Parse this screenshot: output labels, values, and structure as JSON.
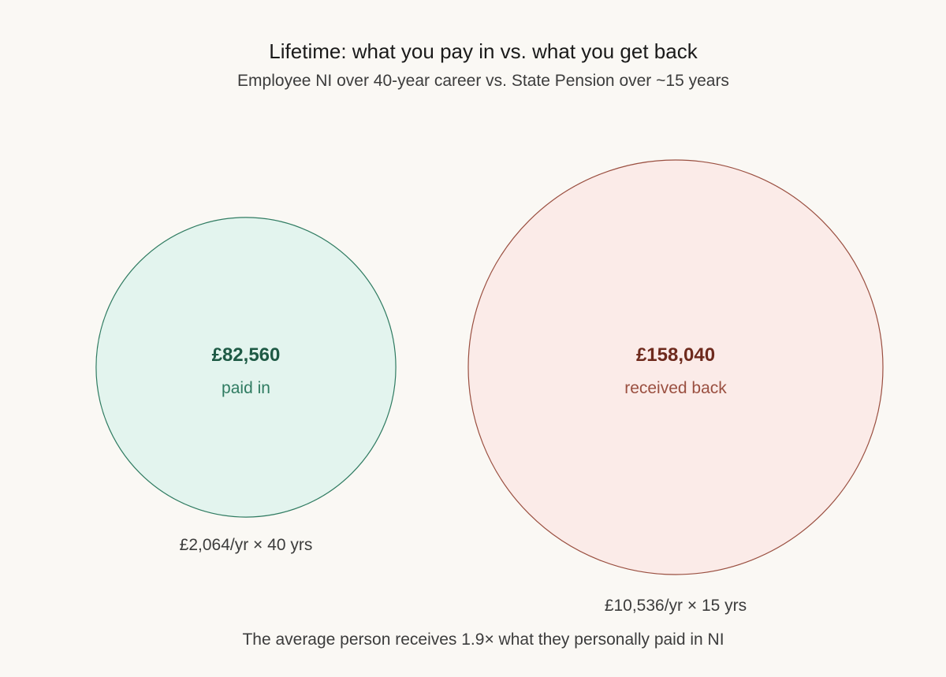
{
  "chart_data": {
    "type": "bubble",
    "title": "Lifetime: what you pay in vs. what you get back",
    "subtitle": "Employee NI over 40-year career vs. State Pension over ~15 years",
    "series": [
      {
        "name": "paid in",
        "value": 82560,
        "value_label": "£82,560",
        "caption": "£2,064/yr × 40 yrs",
        "fill": "#e3f4ee",
        "stroke": "#2f7b61",
        "value_color": "#1e5a45",
        "label_color": "#2f7b61"
      },
      {
        "name": "received back",
        "value": 158040,
        "value_label": "£158,040",
        "caption": "£10,536/yr × 15 yrs",
        "fill": "#fbebe8",
        "stroke": "#9a4f40",
        "value_color": "#6e2a1d",
        "label_color": "#9a4f40"
      }
    ],
    "annotation": "The average person receives 1.9× what they personally paid in NI"
  }
}
